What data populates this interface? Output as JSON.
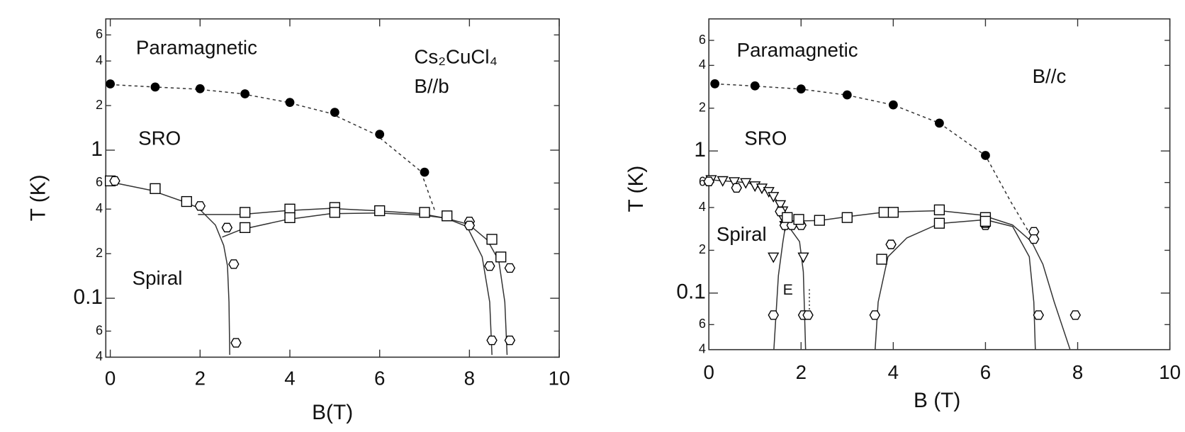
{
  "chart_data": [
    {
      "type": "scatter",
      "xlabel": "B(T)",
      "ylabel": "T (K)",
      "log_y": true,
      "annotations": [
        "Paramagnetic",
        "SRO",
        "Spiral",
        "Cs₂CuCl₄",
        "B//b"
      ],
      "xlim": [
        -0.1,
        10
      ],
      "xticks": [
        0,
        2,
        4,
        6,
        8,
        10
      ],
      "ylim": [
        0.04,
        7.7
      ],
      "yticks": [
        6,
        4,
        2,
        1,
        {
          "value": 0.6,
          "label": "6"
        },
        {
          "value": 0.4,
          "label": "4"
        },
        {
          "value": 0.2,
          "label": "2"
        },
        0.1,
        {
          "value": 0.06,
          "label": "6"
        },
        {
          "value": 0.04,
          "label": "4"
        }
      ],
      "series": [
        {
          "marker": "filled-circle",
          "color": "#000000",
          "x": [
            0,
            1,
            2,
            3,
            4,
            5,
            6,
            7
          ],
          "values": [
            2.8,
            2.67,
            2.6,
            2.4,
            2.1,
            1.8,
            1.28,
            0.71
          ]
        },
        {
          "marker": "square",
          "color": "#000000",
          "x": [
            0,
            1,
            1.7,
            3,
            3,
            4,
            4,
            5,
            5,
            6,
            7,
            7.5,
            8.5,
            8.7
          ],
          "values": [
            0.62,
            0.55,
            0.45,
            0.38,
            0.3,
            0.4,
            0.35,
            0.41,
            0.38,
            0.39,
            0.38,
            0.36,
            0.25,
            0.19
          ]
        },
        {
          "marker": "hexagon",
          "color": "#000000",
          "x": [
            0.1,
            2,
            2.6,
            2.75,
            2.8,
            8,
            8,
            8.45,
            8.5,
            8.9,
            8.9
          ],
          "values": [
            0.62,
            0.42,
            0.3,
            0.17,
            0.05,
            0.33,
            0.31,
            0.165,
            0.052,
            0.16,
            0.052
          ]
        }
      ]
    },
    {
      "type": "scatter",
      "xlabel": "B (T)",
      "ylabel": "T (K)",
      "log_y": true,
      "annotations": [
        "Paramagnetic",
        "SRO",
        "Spiral",
        "E",
        "B//c"
      ],
      "xlim": [
        0,
        10
      ],
      "xticks": [
        0,
        2,
        4,
        6,
        8,
        10
      ],
      "ylim": [
        0.04,
        8.5
      ],
      "yticks": [
        6,
        4,
        2,
        1,
        {
          "value": 0.6,
          "label": "6"
        },
        {
          "value": 0.4,
          "label": "4"
        },
        {
          "value": 0.2,
          "label": "2"
        },
        0.1,
        {
          "value": 0.06,
          "label": "6"
        },
        {
          "value": 0.04,
          "label": "4"
        }
      ],
      "series": [
        {
          "marker": "filled-circle",
          "color": "#000000",
          "x": [
            0.13,
            1,
            2,
            3,
            4,
            5,
            6
          ],
          "values": [
            2.97,
            2.87,
            2.73,
            2.48,
            2.11,
            1.57,
            0.93
          ]
        },
        {
          "marker": "triangle-down",
          "color": "#000000",
          "x": [
            0.05,
            0.3,
            0.55,
            0.8,
            1,
            1.15,
            1.3,
            1.4,
            1.55,
            1.6,
            1.63,
            1.65,
            1.4,
            2.05
          ],
          "values": [
            0.63,
            0.62,
            0.61,
            0.6,
            0.57,
            0.55,
            0.52,
            0.48,
            0.42,
            0.38,
            0.33,
            0.3,
            0.18,
            0.18
          ]
        },
        {
          "marker": "hexagon",
          "color": "#000000",
          "x": [
            0,
            0.6,
            1.55,
            1.65,
            1.8,
            2,
            1.4,
            2.05,
            2.15,
            3.6,
            3.95,
            6,
            6,
            7.05,
            7.05,
            7.15,
            7.95
          ],
          "values": [
            0.61,
            0.55,
            0.375,
            0.3,
            0.3,
            0.3,
            0.07,
            0.07,
            0.07,
            0.07,
            0.22,
            0.3,
            0.31,
            0.27,
            0.24,
            0.07,
            0.07
          ]
        },
        {
          "marker": "square",
          "color": "#000000",
          "x": [
            1.7,
            1.95,
            2.4,
            3,
            3.8,
            4,
            5,
            5,
            6,
            6,
            3.75
          ],
          "values": [
            0.34,
            0.33,
            0.325,
            0.34,
            0.37,
            0.37,
            0.385,
            0.31,
            0.34,
            0.32,
            0.173
          ]
        }
      ]
    }
  ]
}
